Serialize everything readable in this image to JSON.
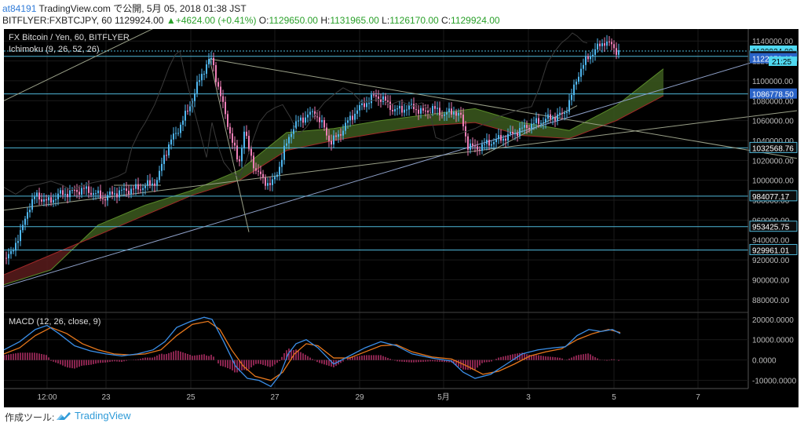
{
  "header": {
    "user": "at84191",
    "published": "TradingView.com で公開, 5月 05, 2018 01:38 JST",
    "symbol": "BITFLYER:FXBTCJPY, 60",
    "last": "1129924.00",
    "change": "▲+4624.00 (+0.41%)",
    "o_label": "O:",
    "o_value": "1129650.00",
    "h_label": "H:",
    "h_value": "1131965.00",
    "l_label": "L:",
    "l_value": "1126170.00",
    "c_label": "C:",
    "c_value": "1129924.00"
  },
  "legend": {
    "title": "FX Bitcoin / Yen, 60, BITFLYER",
    "ichimoku": "Ichimoku (9, 26, 52, 26)",
    "macd": "MACD (12, 26, close, 9)"
  },
  "footer": {
    "label": "作成ツール:",
    "brand": "TradingView"
  },
  "colors": {
    "up": "#4fb7f0",
    "down": "#f080b8",
    "cloud_bull": "#3c5a1f",
    "cloud_bear": "#5a1c1c",
    "macd": "#3b8fe8",
    "signal": "#e8781c",
    "hist": "#e23c82",
    "hline": "#4fb7d8",
    "trend": "#9aa088",
    "trend_blue": "#8ea0c8"
  },
  "chart_data": [
    {
      "type": "candlestick",
      "title": "FX Bitcoin / Yen, 60, BITFLYER",
      "x_ticks": [
        "12:00",
        "23",
        "25",
        "27",
        "29",
        "5月",
        "3",
        "5",
        "7"
      ],
      "y_ticks": [
        880000,
        900000,
        920000,
        940000,
        960000,
        980000,
        1000000,
        1020000,
        1040000,
        1060000,
        1080000,
        1100000,
        1120000,
        1140000
      ],
      "ylim": [
        868000,
        1152000
      ],
      "price_labels": [
        {
          "value": 1129924.0,
          "label": "1129924.00",
          "style": "cyan"
        },
        {
          "value": 1124544.6,
          "label": "1124544.60",
          "style": "dark"
        },
        {
          "value": 1122359.19,
          "label": "1122359.19",
          "style": "blue"
        },
        {
          "value": 1086778.5,
          "label": "1086778.50",
          "style": "blue"
        },
        {
          "value": 1032568.76,
          "label": "1032568.76",
          "style": "dark"
        },
        {
          "value": 984077.17,
          "label": "984077.17",
          "style": "dark"
        },
        {
          "value": 953425.75,
          "label": "953425.75",
          "style": "dark"
        },
        {
          "value": 929961.01,
          "label": "929961.01",
          "style": "dark"
        }
      ],
      "countdown_label": "21:25",
      "horizontal_levels": [
        1129924,
        1124544.6,
        1086778.5,
        1032568.76,
        984077.17,
        953425.75,
        929961.01
      ],
      "price_path": [
        [
          0,
          922000
        ],
        [
          8,
          925000
        ],
        [
          14,
          938000
        ],
        [
          22,
          950000
        ],
        [
          30,
          972000
        ],
        [
          40,
          985000
        ],
        [
          55,
          978000
        ],
        [
          70,
          986000
        ],
        [
          85,
          988000
        ],
        [
          100,
          991000
        ],
        [
          115,
          987000
        ],
        [
          125,
          982000
        ],
        [
          140,
          987000
        ],
        [
          155,
          990000
        ],
        [
          170,
          992000
        ],
        [
          185,
          996000
        ],
        [
          195,
          1000000
        ],
        [
          203,
          1025000
        ],
        [
          212,
          1040000
        ],
        [
          220,
          1050000
        ],
        [
          232,
          1068000
        ],
        [
          242,
          1088000
        ],
        [
          250,
          1105000
        ],
        [
          258,
          1118000
        ],
        [
          264,
          1122000
        ],
        [
          270,
          1100000
        ],
        [
          278,
          1075000
        ],
        [
          288,
          1045000
        ],
        [
          298,
          1015000
        ],
        [
          305,
          1050000
        ],
        [
          312,
          1028000
        ],
        [
          320,
          1010000
        ],
        [
          330,
          1000000
        ],
        [
          340,
          995000
        ],
        [
          348,
          1010000
        ],
        [
          356,
          1030000
        ],
        [
          365,
          1050000
        ],
        [
          375,
          1060000
        ],
        [
          385,
          1065000
        ],
        [
          395,
          1068000
        ],
        [
          405,
          1055000
        ],
        [
          415,
          1038000
        ],
        [
          425,
          1045000
        ],
        [
          438,
          1060000
        ],
        [
          448,
          1070000
        ],
        [
          460,
          1078000
        ],
        [
          472,
          1085000
        ],
        [
          484,
          1080000
        ],
        [
          496,
          1070000
        ],
        [
          508,
          1072000
        ],
        [
          520,
          1074000
        ],
        [
          532,
          1068000
        ],
        [
          545,
          1072000
        ],
        [
          560,
          1066000
        ],
        [
          572,
          1070000
        ],
        [
          582,
          1062000
        ],
        [
          590,
          1035000
        ],
        [
          600,
          1032000
        ],
        [
          612,
          1036000
        ],
        [
          625,
          1040000
        ],
        [
          640,
          1044000
        ],
        [
          655,
          1050000
        ],
        [
          670,
          1056000
        ],
        [
          685,
          1060000
        ],
        [
          700,
          1064000
        ],
        [
          712,
          1066000
        ],
        [
          722,
          1085000
        ],
        [
          732,
          1110000
        ],
        [
          742,
          1122000
        ],
        [
          750,
          1130000
        ],
        [
          758,
          1135000
        ],
        [
          764,
          1140000
        ],
        [
          770,
          1137000
        ],
        [
          778,
          1131000
        ],
        [
          783,
          1130000
        ]
      ],
      "ichimoku_senkou_a": [
        [
          0,
          895000
        ],
        [
          60,
          910000
        ],
        [
          120,
          955000
        ],
        [
          180,
          975000
        ],
        [
          240,
          990000
        ],
        [
          300,
          1010000
        ],
        [
          360,
          1048000
        ],
        [
          420,
          1052000
        ],
        [
          480,
          1060000
        ],
        [
          540,
          1066000
        ],
        [
          600,
          1072000
        ],
        [
          660,
          1058000
        ],
        [
          720,
          1050000
        ],
        [
          780,
          1075000
        ],
        [
          840,
          1112000
        ]
      ],
      "ichimoku_senkou_b": [
        [
          0,
          905000
        ],
        [
          60,
          925000
        ],
        [
          120,
          945000
        ],
        [
          180,
          965000
        ],
        [
          240,
          985000
        ],
        [
          300,
          1000000
        ],
        [
          360,
          1030000
        ],
        [
          420,
          1040000
        ],
        [
          480,
          1048000
        ],
        [
          540,
          1055000
        ],
        [
          600,
          1058000
        ],
        [
          660,
          1045000
        ],
        [
          720,
          1042000
        ],
        [
          780,
          1060000
        ],
        [
          840,
          1085000
        ]
      ],
      "trendlines": [
        {
          "from": [
            0,
            1080000
          ],
          "to": [
            215,
            1162000
          ],
          "color": "trend"
        },
        {
          "from": [
            0,
            970000
          ],
          "to": [
            1010,
            1070000
          ],
          "color": "trend"
        },
        {
          "from": [
            0,
            893000
          ],
          "to": [
            1010,
            1132000
          ],
          "color": "trend_blue"
        },
        {
          "from": [
            262,
            1122000
          ],
          "to": [
            1010,
            1022000
          ],
          "color": "trend"
        },
        {
          "from": [
            262,
            1122000
          ],
          "to": [
            312,
            948000
          ],
          "color": "trend"
        },
        {
          "from": [
            140,
            995000
          ],
          "to": [
            200,
            995000
          ],
          "color": "trend"
        },
        {
          "from": [
            610,
            1025000
          ],
          "to": [
            730,
            1075000
          ],
          "color": "trend"
        }
      ]
    },
    {
      "type": "macd",
      "title": "MACD (12, 26, close, 9)",
      "y_ticks": [
        -10000,
        0,
        10000,
        20000
      ],
      "y_tick_labels": [
        "-10000.0000",
        "0.0000",
        "10000.0000",
        "20000.0000"
      ],
      "ylim": [
        -14000,
        23000
      ],
      "macd": [
        [
          0,
          5000
        ],
        [
          20,
          9000
        ],
        [
          40,
          15000
        ],
        [
          55,
          17000
        ],
        [
          70,
          13000
        ],
        [
          90,
          7000
        ],
        [
          110,
          4500
        ],
        [
          130,
          3000
        ],
        [
          150,
          2000
        ],
        [
          170,
          3000
        ],
        [
          190,
          5000
        ],
        [
          205,
          9000
        ],
        [
          220,
          16000
        ],
        [
          238,
          19000
        ],
        [
          255,
          21000
        ],
        [
          265,
          20000
        ],
        [
          280,
          9000
        ],
        [
          295,
          -3000
        ],
        [
          310,
          -9000
        ],
        [
          325,
          -10000
        ],
        [
          340,
          -13000
        ],
        [
          352,
          -7000
        ],
        [
          362,
          3000
        ],
        [
          372,
          8000
        ],
        [
          385,
          10000
        ],
        [
          400,
          6000
        ],
        [
          420,
          -2000
        ],
        [
          440,
          2000
        ],
        [
          460,
          6000
        ],
        [
          480,
          9000
        ],
        [
          500,
          7000
        ],
        [
          520,
          3000
        ],
        [
          545,
          1000
        ],
        [
          570,
          -500
        ],
        [
          585,
          -6000
        ],
        [
          600,
          -9000
        ],
        [
          620,
          -7000
        ],
        [
          640,
          -2000
        ],
        [
          660,
          3000
        ],
        [
          680,
          5000
        ],
        [
          700,
          6000
        ],
        [
          715,
          6500
        ],
        [
          730,
          12000
        ],
        [
          745,
          15000
        ],
        [
          760,
          14000
        ],
        [
          775,
          15000
        ],
        [
          785,
          13000
        ]
      ],
      "signal": [
        [
          0,
          3000
        ],
        [
          20,
          6000
        ],
        [
          40,
          12000
        ],
        [
          60,
          16000
        ],
        [
          80,
          13000
        ],
        [
          100,
          8000
        ],
        [
          120,
          5000
        ],
        [
          140,
          3000
        ],
        [
          160,
          2500
        ],
        [
          180,
          3000
        ],
        [
          200,
          5000
        ],
        [
          220,
          12000
        ],
        [
          240,
          17500
        ],
        [
          260,
          19000
        ],
        [
          275,
          15000
        ],
        [
          290,
          5000
        ],
        [
          305,
          -3000
        ],
        [
          320,
          -8000
        ],
        [
          340,
          -10000
        ],
        [
          355,
          -6000
        ],
        [
          370,
          3000
        ],
        [
          385,
          8000
        ],
        [
          400,
          7000
        ],
        [
          420,
          1000
        ],
        [
          440,
          1000
        ],
        [
          460,
          4000
        ],
        [
          480,
          7000
        ],
        [
          500,
          7500
        ],
        [
          520,
          4000
        ],
        [
          545,
          1500
        ],
        [
          570,
          500
        ],
        [
          590,
          -3000
        ],
        [
          610,
          -7000
        ],
        [
          630,
          -5500
        ],
        [
          650,
          -2000
        ],
        [
          670,
          2000
        ],
        [
          690,
          4000
        ],
        [
          710,
          5500
        ],
        [
          730,
          10000
        ],
        [
          750,
          13000
        ],
        [
          770,
          15000
        ],
        [
          785,
          13500
        ]
      ]
    }
  ]
}
